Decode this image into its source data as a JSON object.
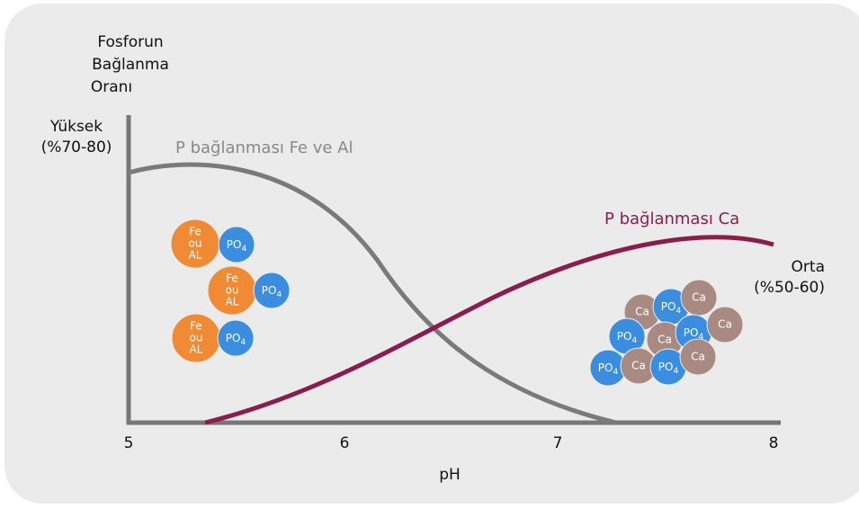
{
  "y_axis": {
    "title_lines": [
      "Fosforun",
      "Bağlanma",
      "Oranı"
    ],
    "high": [
      "Yüksek",
      "(%70-80)"
    ],
    "medium": [
      "Orta",
      "(%50-60)"
    ]
  },
  "x_axis": {
    "title": "pH",
    "ticks": [
      "5",
      "6",
      "7",
      "8"
    ]
  },
  "curves": [
    {
      "label": "P bağlanması Fe ve Al"
    },
    {
      "label": "P bağlanması Ca"
    }
  ],
  "molecules": {
    "fe_al": [
      "Fe",
      "ou",
      "AL"
    ],
    "phosphate": {
      "base": "PO",
      "sub": "4"
    },
    "calcium": "Ca"
  }
}
